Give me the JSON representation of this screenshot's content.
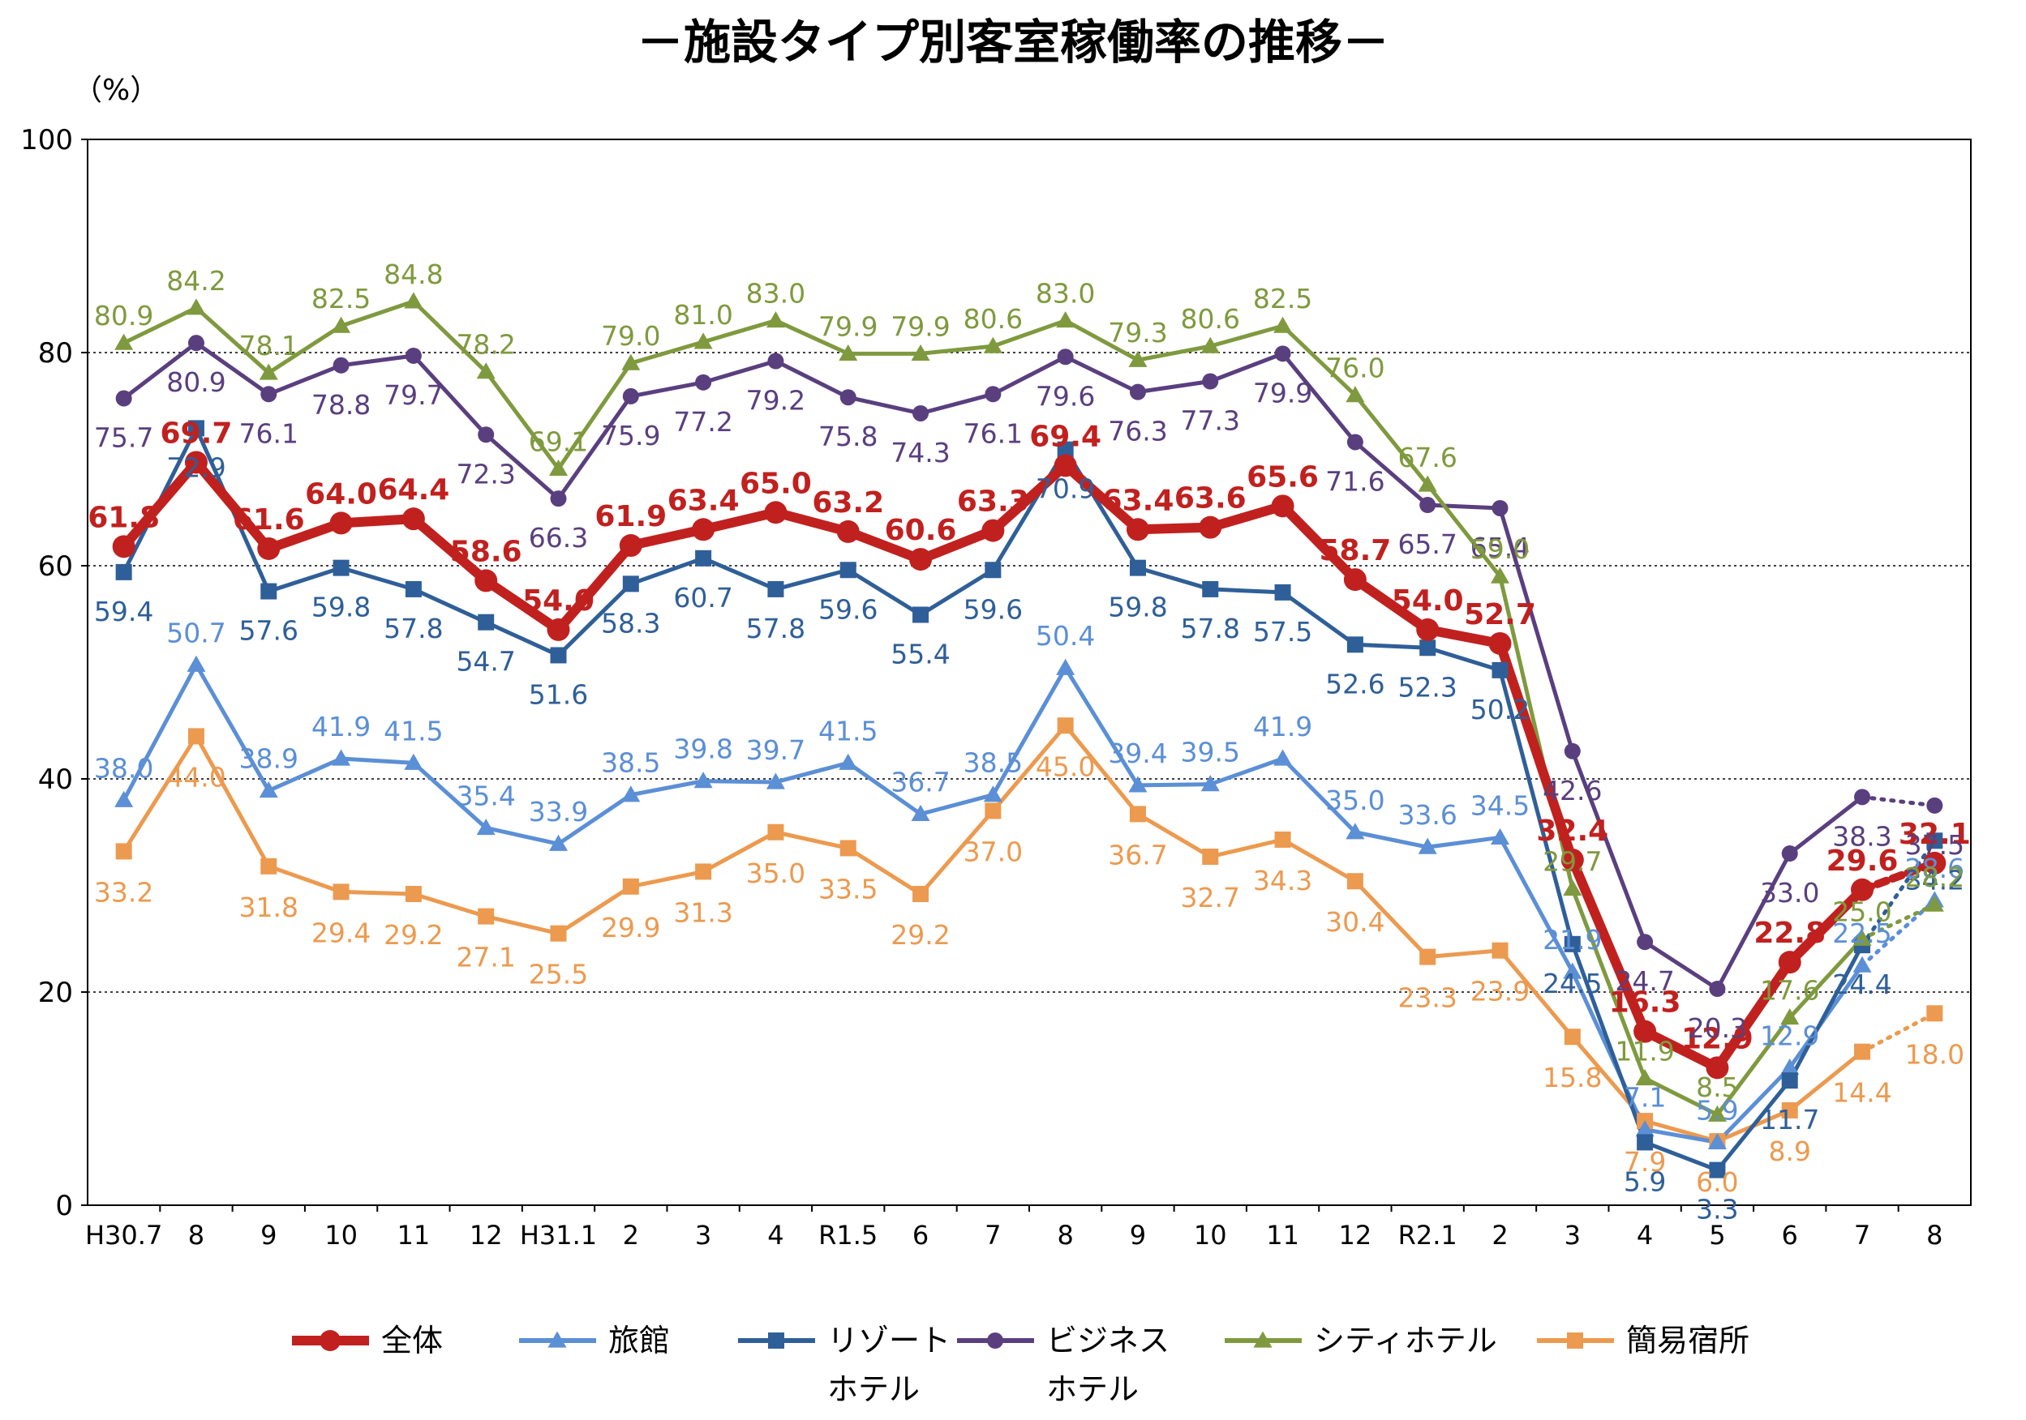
{
  "chart_data": {
    "type": "line",
    "title": "－施設タイプ別客室稼働率の推移－",
    "unit_label": "（%）",
    "ylim": [
      0,
      100
    ],
    "yticks": [
      0,
      20,
      40,
      60,
      80,
      100
    ],
    "grid": "horizontal-dotted",
    "legend_position": "bottom",
    "categories": [
      "H30.7",
      "8",
      "9",
      "10",
      "11",
      "12",
      "H31.1",
      "2",
      "3",
      "4",
      "R1.5",
      "6",
      "7",
      "8",
      "9",
      "10",
      "11",
      "12",
      "R2.1",
      "2",
      "3",
      "4",
      "5",
      "6",
      "7",
      "8"
    ],
    "series": [
      {
        "name": "全体",
        "color": "#c0211f",
        "marker": "circle",
        "bold": true,
        "values": [
          61.8,
          69.7,
          61.6,
          64.0,
          64.4,
          58.6,
          54.0,
          61.9,
          63.4,
          65.0,
          63.2,
          60.6,
          63.3,
          69.4,
          63.4,
          63.6,
          65.6,
          58.7,
          54.0,
          52.7,
          32.4,
          16.3,
          12.9,
          22.8,
          29.6,
          32.1
        ],
        "label_text": [
          "61.8",
          "69.7",
          "61.6",
          "64.0",
          "64.4",
          "58.6",
          "54.0",
          "61.9",
          "63.4",
          "65.0",
          "63.2",
          "60.6",
          "63.3",
          "69.4",
          "63.4",
          "63.6",
          "65.6",
          "58.7",
          "54.0",
          "52.7",
          "32.4",
          "16.3",
          "12.9",
          "22.8",
          "29.6",
          "32.1"
        ]
      },
      {
        "name": "旅館",
        "color": "#5b8fd6",
        "marker": "triangle",
        "bold": false,
        "values": [
          38.0,
          50.7,
          38.9,
          41.9,
          41.5,
          35.4,
          33.9,
          38.5,
          39.8,
          39.7,
          41.5,
          36.7,
          38.5,
          50.4,
          39.4,
          39.5,
          41.9,
          35.0,
          33.6,
          34.5,
          21.9,
          7.1,
          5.9,
          12.9,
          22.5,
          28.6
        ],
        "label_text": [
          "38.0",
          "50.7",
          "38.9",
          "41.9",
          "41.5",
          "35.4",
          "33.9",
          "38.5",
          "39.8",
          "39.7",
          "41.5",
          "36.7",
          "38.5",
          "50.4",
          "39.4",
          "39.5",
          "41.9",
          "35.0",
          "33.6",
          "34.5",
          "21.9",
          "7.1",
          "5.9",
          "12.9",
          "22.5",
          "28.6"
        ]
      },
      {
        "name": "リゾートホテル",
        "legend_lines": [
          "リゾート",
          "ホテル"
        ],
        "color": "#2f5f98",
        "marker": "square",
        "bold": false,
        "values": [
          59.4,
          72.9,
          57.6,
          59.8,
          57.8,
          54.7,
          51.6,
          58.3,
          60.7,
          57.8,
          59.6,
          55.4,
          59.6,
          70.9,
          59.8,
          57.8,
          57.5,
          52.6,
          52.3,
          50.2,
          24.5,
          5.9,
          3.3,
          11.7,
          24.4,
          34.2
        ],
        "label_text": [
          "59.4",
          "72.9",
          "57.6",
          "59.8",
          "57.8",
          "54.7",
          "51.6",
          "58.3",
          "60.7",
          "57.8",
          "59.6",
          "55.4",
          "59.6",
          "70.9",
          "59.8",
          "57.8",
          "57.5",
          "52.6",
          "52.3",
          "50.2",
          "24.5",
          "5.9",
          "3.3",
          "11.7",
          "24.4",
          "34.2"
        ]
      },
      {
        "name": "ビジネスホテル",
        "legend_lines": [
          "ビジネス",
          "ホテル"
        ],
        "color": "#5a3f7f",
        "marker": "circle",
        "bold": false,
        "values": [
          75.7,
          80.9,
          76.1,
          78.8,
          79.7,
          72.3,
          66.3,
          75.9,
          77.2,
          79.2,
          75.8,
          74.3,
          76.1,
          79.6,
          76.3,
          77.3,
          79.9,
          71.6,
          65.7,
          65.4,
          42.6,
          24.7,
          20.3,
          33.0,
          38.3,
          37.5
        ],
        "label_text": [
          "75.7",
          "80.9",
          "76.1",
          "78.8",
          "79.7",
          "72.3",
          "66.3",
          "75.9",
          "77.2",
          "79.2",
          "75.8",
          "74.3",
          "76.1",
          "79.6",
          "76.3",
          "77.3",
          "79.9",
          "71.6",
          "65.7",
          "65.4",
          "42.6",
          "24.7",
          "20.3",
          "33.0",
          "38.3",
          "37.5"
        ]
      },
      {
        "name": "シティホテル",
        "color": "#7f9a3e",
        "marker": "triangle",
        "bold": false,
        "values": [
          80.9,
          84.2,
          78.1,
          82.5,
          84.8,
          78.2,
          69.1,
          79.0,
          81.0,
          83.0,
          79.9,
          79.9,
          80.6,
          83.0,
          79.3,
          80.6,
          82.5,
          76.0,
          67.6,
          59.0,
          29.7,
          11.9,
          8.5,
          17.6,
          25.0,
          28.2
        ],
        "label_text": [
          "80.9",
          "84.2",
          "78.1",
          "82.5",
          "84.8",
          "78.2",
          "69.1",
          "79.0",
          "81.0",
          "83.0",
          "79.9",
          "79.9",
          "80.6",
          "83.0",
          "79.3",
          "80.6",
          "82.5",
          "76.0",
          "67.6",
          "59.0",
          "29.7",
          "11.9",
          "8.5",
          "17.6",
          "25.0",
          "28.2"
        ]
      },
      {
        "name": "簡易宿所",
        "color": "#ec9a4f",
        "marker": "square",
        "bold": false,
        "values": [
          33.2,
          44.0,
          31.8,
          29.4,
          29.2,
          27.1,
          25.5,
          29.9,
          31.3,
          35.0,
          33.5,
          29.2,
          37.0,
          45.0,
          36.7,
          32.7,
          34.3,
          30.4,
          23.3,
          23.9,
          15.8,
          7.9,
          6.0,
          8.9,
          14.4,
          18.0
        ],
        "label_text": [
          "33.2",
          "44.0",
          "31.8",
          "29.4",
          "29.2",
          "27.1",
          "25.5",
          "29.9",
          "31.3",
          "35.0",
          "33.5",
          "29.2",
          "37.0",
          "45.0",
          "36.7",
          "32.7",
          "34.3",
          "30.4",
          "23.3",
          "23.9",
          "15.8",
          "7.9",
          "6.0",
          "8.9",
          "14.4",
          "18.0"
        ]
      }
    ],
    "last_segment_style": "dotted"
  }
}
